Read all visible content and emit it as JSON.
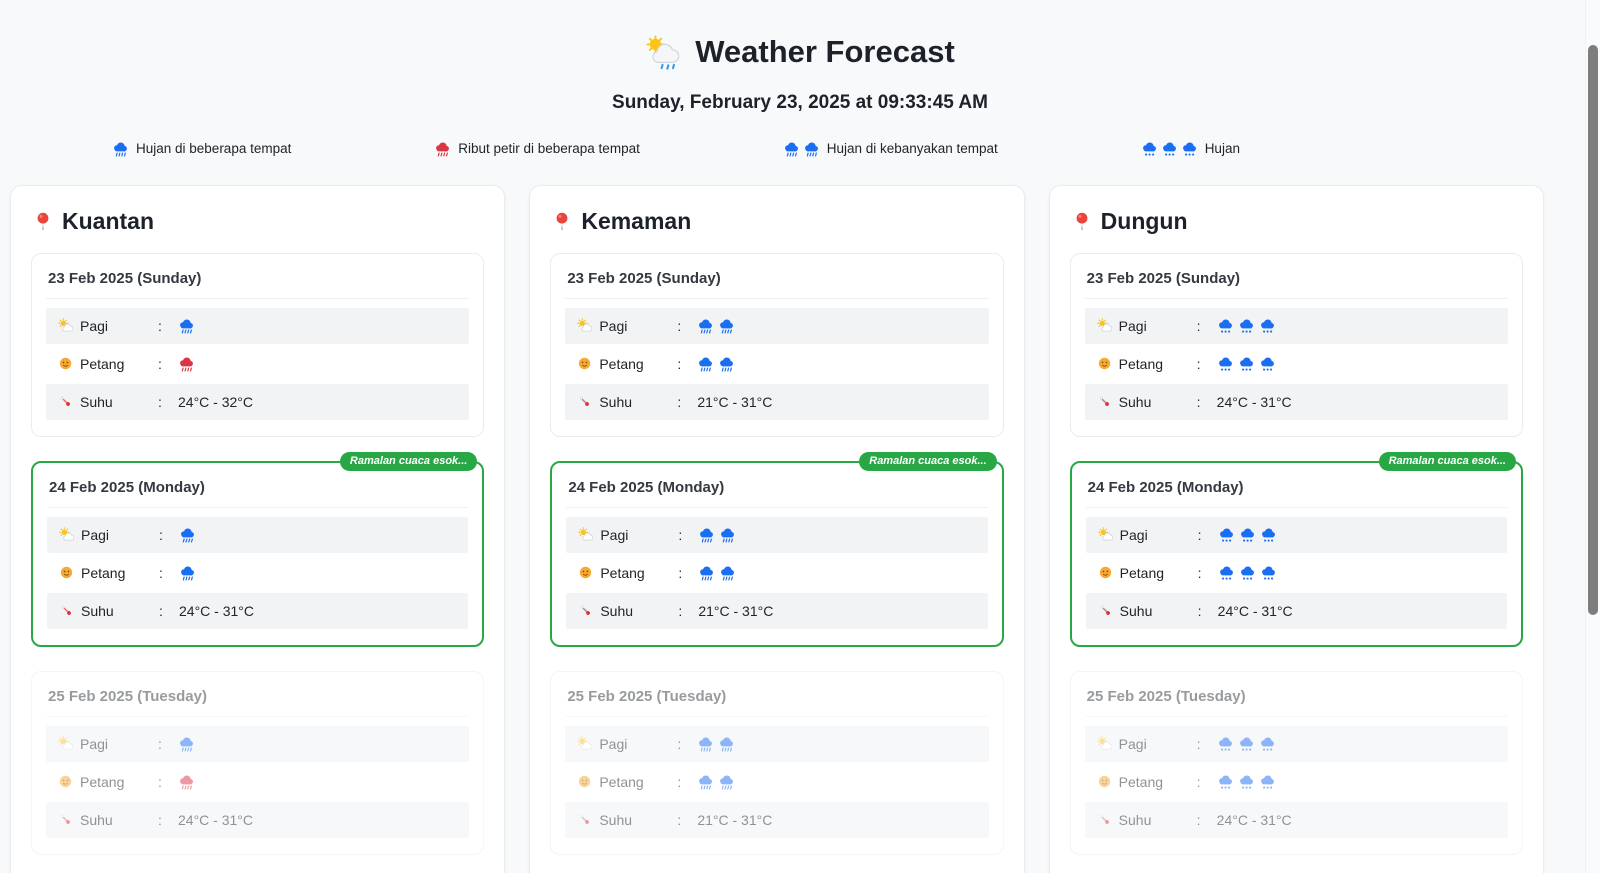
{
  "header": {
    "title": "Weather Forecast",
    "title_icon": "sun-behind-rain-cloud",
    "datetime": "Sunday, February 23, 2025 at 09:33:45 AM"
  },
  "colors": {
    "blue": "#1a6ef2",
    "red": "#dc3545",
    "green": "#28a745",
    "page_bg": "#f8f9fa",
    "row_alt_bg": "#f1f3f5"
  },
  "icons": {
    "title": "sun-behind-rain-cloud",
    "location": "round-pushpin",
    "morning": "sun-behind-small-cloud",
    "evening": "orange-smiling-face",
    "temperature": "thermometer",
    "rain": "rain-cloud"
  },
  "labels": {
    "pagi": "Pagi",
    "petang": "Petang",
    "suhu": "Suhu",
    "colon": ":"
  },
  "badge": "Ramalan cuaca esok...",
  "legend": [
    {
      "name": "rain-in-some-places",
      "label": "Hujan di beberapa tempat",
      "icon": {
        "count": 1,
        "color": "blue",
        "variant": "lines"
      }
    },
    {
      "name": "thunderstorms-some-places",
      "label": "Ribut petir di beberapa tempat",
      "icon": {
        "count": 1,
        "color": "red",
        "variant": "lines"
      }
    },
    {
      "name": "rain-in-most-places",
      "label": "Hujan di kebanyakan tempat",
      "icon": {
        "count": 2,
        "color": "blue",
        "variant": "lines"
      }
    },
    {
      "name": "rain",
      "label": "Hujan",
      "icon": {
        "count": 3,
        "color": "blue",
        "variant": "dots"
      }
    }
  ],
  "cities": [
    {
      "name": "Kuantan",
      "days": [
        {
          "title": "23 Feb 2025 (Sunday)",
          "highlight": false,
          "faded": false,
          "pagi": {
            "count": 1,
            "color": "blue",
            "variant": "lines"
          },
          "petang": {
            "count": 1,
            "color": "red",
            "variant": "lines"
          },
          "suhu": "24°C - 32°C"
        },
        {
          "title": "24 Feb 2025 (Monday)",
          "highlight": true,
          "faded": false,
          "pagi": {
            "count": 1,
            "color": "blue",
            "variant": "lines"
          },
          "petang": {
            "count": 1,
            "color": "blue",
            "variant": "lines"
          },
          "suhu": "24°C - 31°C"
        },
        {
          "title": "25 Feb 2025 (Tuesday)",
          "highlight": false,
          "faded": true,
          "pagi": {
            "count": 1,
            "color": "blue",
            "variant": "lines"
          },
          "petang": {
            "count": 1,
            "color": "red",
            "variant": "lines"
          },
          "suhu": "24°C - 31°C"
        }
      ]
    },
    {
      "name": "Kemaman",
      "days": [
        {
          "title": "23 Feb 2025 (Sunday)",
          "highlight": false,
          "faded": false,
          "pagi": {
            "count": 2,
            "color": "blue",
            "variant": "lines"
          },
          "petang": {
            "count": 2,
            "color": "blue",
            "variant": "lines"
          },
          "suhu": "21°C - 31°C"
        },
        {
          "title": "24 Feb 2025 (Monday)",
          "highlight": true,
          "faded": false,
          "pagi": {
            "count": 2,
            "color": "blue",
            "variant": "lines"
          },
          "petang": {
            "count": 2,
            "color": "blue",
            "variant": "lines"
          },
          "suhu": "21°C - 31°C"
        },
        {
          "title": "25 Feb 2025 (Tuesday)",
          "highlight": false,
          "faded": true,
          "pagi": {
            "count": 2,
            "color": "blue",
            "variant": "lines"
          },
          "petang": {
            "count": 2,
            "color": "blue",
            "variant": "lines"
          },
          "suhu": "21°C - 31°C"
        }
      ]
    },
    {
      "name": "Dungun",
      "days": [
        {
          "title": "23 Feb 2025 (Sunday)",
          "highlight": false,
          "faded": false,
          "pagi": {
            "count": 3,
            "color": "blue",
            "variant": "dots"
          },
          "petang": {
            "count": 3,
            "color": "blue",
            "variant": "dots"
          },
          "suhu": "24°C - 31°C"
        },
        {
          "title": "24 Feb 2025 (Monday)",
          "highlight": true,
          "faded": false,
          "pagi": {
            "count": 3,
            "color": "blue",
            "variant": "dots"
          },
          "petang": {
            "count": 3,
            "color": "blue",
            "variant": "dots"
          },
          "suhu": "24°C - 31°C"
        },
        {
          "title": "25 Feb 2025 (Tuesday)",
          "highlight": false,
          "faded": true,
          "pagi": {
            "count": 3,
            "color": "blue",
            "variant": "dots"
          },
          "petang": {
            "count": 3,
            "color": "blue",
            "variant": "dots"
          },
          "suhu": "24°C - 31°C"
        }
      ]
    }
  ]
}
